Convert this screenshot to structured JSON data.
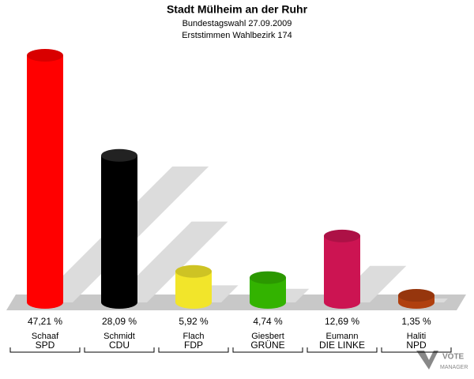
{
  "chart_data": {
    "type": "bar",
    "title": "Stadt Mülheim an der Ruhr",
    "subtitle": "Bundestagswahl 27.09.2009",
    "subtitle2": "Erststimmen Wahlbezirk 174",
    "categories": [
      "SPD",
      "CDU",
      "FDP",
      "GRÜNE",
      "DIE LINKE",
      "NPD"
    ],
    "candidates": [
      "Schaaf",
      "Schmidt",
      "Flach",
      "Giesbert",
      "Eumann",
      "Haliti"
    ],
    "values": [
      47.21,
      28.09,
      5.92,
      4.74,
      12.69,
      1.35
    ],
    "value_labels": [
      "47,21 %",
      "28,09 %",
      "5,92 %",
      "4,74 %",
      "12,69 %",
      "1,35 %"
    ],
    "colors": [
      "#ff0000",
      "#000000",
      "#f2e52a",
      "#33b300",
      "#cc1452",
      "#b0400f"
    ],
    "logo": [
      "VOTE",
      "MANAGER"
    ]
  }
}
